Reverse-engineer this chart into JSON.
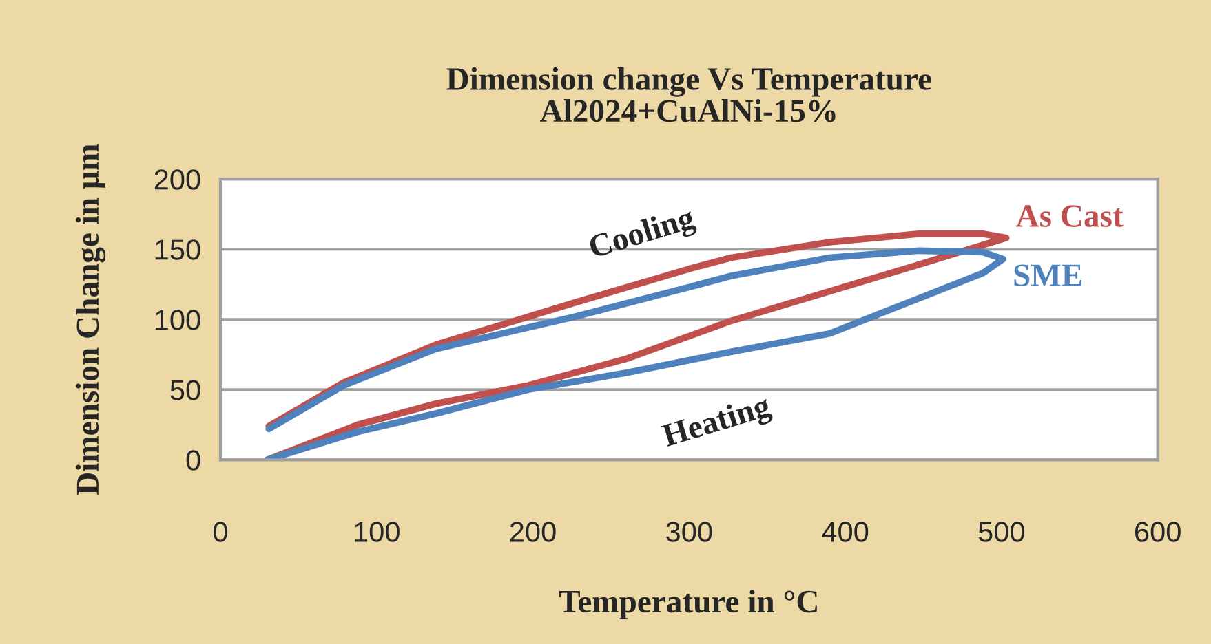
{
  "chart_data": {
    "type": "line",
    "title": "Dimension change Vs Temperature\nAl2024+CuAlNi-15%",
    "xlabel": "Temperature in °C",
    "ylabel": "Dimension Change in µm",
    "xlim": [
      0,
      600
    ],
    "xticks": [
      0,
      100,
      200,
      300,
      400,
      500,
      600
    ],
    "ylim": [
      0,
      200
    ],
    "yticks": [
      0,
      50,
      100,
      150,
      200
    ],
    "grid": "y",
    "legend": false,
    "marker": "none",
    "line_style": "solid",
    "series": [
      {
        "name": "As Cast",
        "color": "#c0504d",
        "x": [
          30,
          88,
          138,
          197,
          260,
          327,
          390,
          447,
          488,
          503,
          488,
          447,
          390,
          327,
          300,
          227,
          138,
          79,
          31
        ],
        "values": [
          0,
          25,
          40,
          53,
          72,
          99,
          120,
          139,
          153,
          158,
          161,
          161,
          155,
          144,
          136,
          112,
          82,
          55,
          24
        ]
      },
      {
        "name": "SME",
        "color": "#4f81bd",
        "x": [
          30,
          88,
          138,
          197,
          260,
          327,
          390,
          447,
          488,
          501,
          488,
          447,
          390,
          327,
          300,
          227,
          138,
          79,
          31
        ],
        "values": [
          0,
          20,
          33,
          50,
          62,
          77,
          90,
          115,
          133,
          143,
          148,
          149,
          144,
          131,
          123,
          102,
          79,
          53,
          22
        ]
      }
    ],
    "annotations": [
      "Cooling",
      "Heating"
    ]
  }
}
